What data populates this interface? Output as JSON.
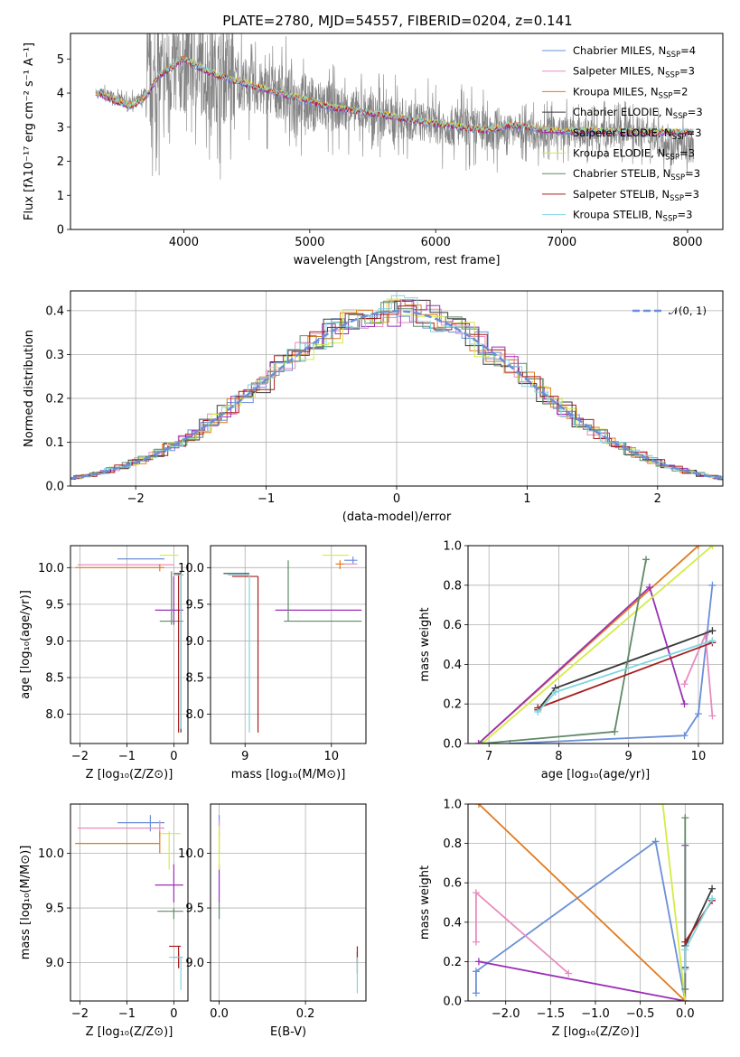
{
  "colors": {
    "miles_chabrier": "#6a8fd8",
    "miles_salpeter": "#e88cbf",
    "miles_kroupa": "#e07b1f",
    "elodie_chabrier": "#3a3a3a",
    "elodie_salpeter": "#9b30b5",
    "elodie_kroupa": "#d4ec45",
    "stelib_chabrier": "#5f8a66",
    "stelib_salpeter": "#a81e1e",
    "stelib_kroupa": "#7fd6e0",
    "data": "#808080",
    "normal": "#6a8fd8"
  },
  "legend": [
    {
      "id": "miles_chabrier",
      "label": "Chabrier MILES, N",
      "sub": "SSP",
      "tail": "=4"
    },
    {
      "id": "miles_salpeter",
      "label": "Salpeter MILES, N",
      "sub": "SSP",
      "tail": "=3"
    },
    {
      "id": "miles_kroupa",
      "label": "Kroupa MILES, N",
      "sub": "SSP",
      "tail": "=2"
    },
    {
      "id": "elodie_chabrier",
      "label": "Chabrier ELODIE, N",
      "sub": "SSP",
      "tail": "=3"
    },
    {
      "id": "elodie_salpeter",
      "label": "Salpeter ELODIE, N",
      "sub": "SSP",
      "tail": "=3"
    },
    {
      "id": "elodie_kroupa",
      "label": "Kroupa ELODIE, N",
      "sub": "SSP",
      "tail": "=3"
    },
    {
      "id": "stelib_chabrier",
      "label": "Chabrier STELIB, N",
      "sub": "SSP",
      "tail": "=3"
    },
    {
      "id": "stelib_salpeter",
      "label": "Salpeter STELIB, N",
      "sub": "SSP",
      "tail": "=3"
    },
    {
      "id": "stelib_kroupa",
      "label": "Kroupa STELIB, N",
      "sub": "SSP",
      "tail": "=3"
    }
  ],
  "chart_data": [
    {
      "id": "spectrum",
      "type": "line",
      "title": "PLATE=2780, MJD=54557, FIBERID=0204, z=0.141",
      "xlabel": "wavelength [Angstrom, rest frame]",
      "ylabel": "Flux [fλ10⁻¹⁷ erg cm⁻² s⁻¹ A⁻¹]",
      "xlim": [
        3100,
        8280
      ],
      "ylim": [
        0,
        5.75
      ],
      "xticks": [
        4000,
        5000,
        6000,
        7000,
        8000
      ],
      "yticks": [
        0,
        1,
        2,
        3,
        4,
        5
      ],
      "grid": false,
      "legend_position": "top-right",
      "data_series": {
        "name": "data",
        "x": [
          3350,
          3450,
          3550,
          3650,
          3750,
          3850,
          3950,
          4050,
          4200,
          4400,
          4600,
          4800,
          5000,
          5200,
          5400,
          5600,
          5800,
          6000,
          6200,
          6400,
          6600,
          6800,
          7000,
          7200,
          7400,
          7600,
          7800,
          8000
        ],
        "y": [
          4.0,
          3.9,
          3.75,
          3.8,
          4.3,
          4.6,
          4.7,
          4.9,
          4.6,
          4.4,
          4.1,
          4.0,
          3.7,
          3.55,
          3.45,
          3.3,
          3.2,
          3.1,
          3.0,
          2.9,
          2.95,
          2.8,
          2.9,
          2.8,
          2.85,
          2.9,
          2.6,
          2.4
        ]
      },
      "model_series": {
        "x": [
          3300,
          3400,
          3500,
          3600,
          3700,
          3800,
          3900,
          4000,
          4100,
          4200,
          4400,
          4600,
          4800,
          5000,
          5200,
          5400,
          5600,
          5800,
          6000,
          6200,
          6400,
          6600,
          6800,
          7000,
          7200,
          7400
        ],
        "y": [
          4.0,
          3.85,
          3.7,
          3.6,
          3.9,
          4.5,
          4.75,
          5.0,
          4.8,
          4.6,
          4.35,
          4.15,
          3.95,
          3.75,
          3.55,
          3.45,
          3.35,
          3.2,
          3.1,
          3.0,
          2.9,
          3.05,
          2.95,
          2.85,
          2.9,
          2.85
        ]
      }
    },
    {
      "id": "residuals",
      "type": "bar",
      "xlabel": "(data-model)/error",
      "ylabel": "Normed distribution",
      "xlim": [
        -2.5,
        2.5
      ],
      "ylim": [
        0,
        0.445
      ],
      "xticks": [
        -2,
        -1,
        0,
        1,
        2
      ],
      "yticks": [
        0.0,
        0.1,
        0.2,
        0.3,
        0.4
      ],
      "grid": true,
      "legend_position": "top-right",
      "normal_label": "𝒩(0, 1)",
      "normal_mu": 0,
      "normal_sigma": 1
    },
    {
      "id": "age_vs_Z",
      "type": "scatter",
      "xlabel": "Z [log₁₀(Z/Z⊙)]",
      "ylabel": "age  [log₁₀(age/yr)]",
      "xlim": [
        -2.2,
        0.3
      ],
      "ylim": [
        7.6,
        10.3
      ],
      "xticks": [
        -2,
        -1,
        0
      ],
      "yticks": [
        8.0,
        8.5,
        9.0,
        9.5,
        10.0
      ],
      "grid": true,
      "points": [
        {
          "series": "miles_chabrier",
          "x": -0.5,
          "y": 10.12,
          "x_lo": -1.2,
          "x_hi": -0.2,
          "y_lo": 10.12,
          "y_hi": 10.12
        },
        {
          "series": "miles_salpeter",
          "x": -0.3,
          "y": 10.04,
          "x_lo": -2.05,
          "x_hi": 0.0,
          "y_lo": 10.04,
          "y_hi": 10.04
        },
        {
          "series": "miles_kroupa",
          "x": -0.3,
          "y": 10.0,
          "x_lo": -2.1,
          "x_hi": -0.2,
          "y_lo": 9.95,
          "y_hi": 10.05
        },
        {
          "series": "elodie_chabrier",
          "x": 0.15,
          "y": 9.9,
          "x_lo": 0.0,
          "x_hi": 0.2,
          "y_lo": 7.75,
          "y_hi": 9.95
        },
        {
          "series": "elodie_salpeter",
          "x": 0.0,
          "y": 9.42,
          "x_lo": -0.4,
          "x_hi": 0.2,
          "y_lo": 9.22,
          "y_hi": 9.88
        },
        {
          "series": "elodie_kroupa",
          "x": -0.1,
          "y": 10.17,
          "x_lo": -0.3,
          "x_hi": 0.1,
          "y_lo": 10.17,
          "y_hi": 10.17
        },
        {
          "series": "stelib_chabrier",
          "x": -0.05,
          "y": 9.27,
          "x_lo": -0.3,
          "x_hi": 0.2,
          "y_lo": 9.22,
          "y_hi": 9.95
        },
        {
          "series": "stelib_salpeter",
          "x": 0.1,
          "y": 9.92,
          "x_lo": 0.0,
          "x_hi": 0.15,
          "y_lo": 7.75,
          "y_hi": 9.92
        },
        {
          "series": "stelib_kroupa",
          "x": 0.15,
          "y": 9.9,
          "x_lo": 0.0,
          "x_hi": 0.2,
          "y_lo": 7.8,
          "y_hi": 9.92
        }
      ]
    },
    {
      "id": "age_vs_mass",
      "type": "scatter",
      "xlabel": "mass [log₁₀(M/M⊙)]",
      "ylabel": "",
      "xlim": [
        8.6,
        10.4
      ],
      "ylim": [
        7.6,
        10.3
      ],
      "xticks": [
        9,
        10
      ],
      "yticks": [
        8.0,
        8.5,
        9.0,
        9.5,
        10.0
      ],
      "grid": true,
      "points": [
        {
          "series": "miles_chabrier",
          "x": 10.25,
          "y": 10.1,
          "x_lo": 10.15,
          "x_hi": 10.3,
          "y_lo": 10.05,
          "y_hi": 10.15
        },
        {
          "series": "miles_salpeter",
          "x": 10.2,
          "y": 10.05,
          "x_lo": 10.15,
          "x_hi": 10.3,
          "y_lo": 10.05,
          "y_hi": 10.05
        },
        {
          "series": "miles_kroupa",
          "x": 10.1,
          "y": 10.05,
          "x_lo": 10.05,
          "x_hi": 10.15,
          "y_lo": 9.98,
          "y_hi": 10.1
        },
        {
          "series": "elodie_chabrier",
          "x": 9.0,
          "y": 9.92,
          "x_lo": 8.75,
          "x_hi": 9.05,
          "y_lo": 9.92,
          "y_hi": 9.92
        },
        {
          "series": "elodie_salpeter",
          "x": 9.7,
          "y": 9.42,
          "x_lo": 9.35,
          "x_hi": 10.35,
          "y_lo": 9.42,
          "y_hi": 9.42
        },
        {
          "series": "elodie_kroupa",
          "x": 10.0,
          "y": 10.17,
          "x_lo": 9.9,
          "x_hi": 10.2,
          "y_lo": 10.17,
          "y_hi": 10.17
        },
        {
          "series": "stelib_chabrier",
          "x": 9.5,
          "y": 9.27,
          "x_lo": 9.45,
          "x_hi": 10.35,
          "y_lo": 9.27,
          "y_hi": 10.1
        },
        {
          "series": "stelib_salpeter",
          "x": 9.15,
          "y": 9.88,
          "x_lo": 8.85,
          "x_hi": 9.15,
          "y_lo": 7.75,
          "y_hi": 9.88
        },
        {
          "series": "stelib_kroupa",
          "x": 9.05,
          "y": 9.9,
          "x_lo": 8.8,
          "x_hi": 9.05,
          "y_lo": 7.75,
          "y_hi": 9.9
        }
      ]
    },
    {
      "id": "weight_vs_age",
      "type": "line",
      "xlabel": "age  [log₁₀(age/yr)]",
      "ylabel": "mass weight",
      "xlim": [
        6.7,
        10.35
      ],
      "ylim": [
        0,
        1
      ],
      "xticks": [
        7,
        8,
        9,
        10
      ],
      "yticks": [
        0.0,
        0.2,
        0.4,
        0.6,
        0.8,
        1.0
      ],
      "grid": true,
      "series": [
        {
          "id": "miles_chabrier",
          "x": [
            7.3,
            9.8,
            10.0,
            10.2
          ],
          "y": [
            0.0,
            0.04,
            0.15,
            0.8
          ]
        },
        {
          "id": "miles_salpeter",
          "x": [
            9.8,
            10.1,
            10.2
          ],
          "y": [
            0.3,
            0.55,
            0.14
          ]
        },
        {
          "id": "miles_kroupa",
          "x": [
            6.85,
            10.0
          ],
          "y": [
            0.0,
            1.0
          ]
        },
        {
          "id": "elodie_chabrier",
          "x": [
            7.7,
            7.95,
            10.2
          ],
          "y": [
            0.17,
            0.28,
            0.57
          ]
        },
        {
          "id": "elodie_salpeter",
          "x": [
            6.85,
            9.3,
            9.8
          ],
          "y": [
            0.0,
            0.79,
            0.2
          ]
        },
        {
          "id": "elodie_kroupa",
          "x": [
            6.9,
            10.2
          ],
          "y": [
            0.0,
            1.0
          ]
        },
        {
          "id": "stelib_chabrier",
          "x": [
            6.9,
            8.8,
            9.25
          ],
          "y": [
            0.0,
            0.06,
            0.93
          ]
        },
        {
          "id": "stelib_salpeter",
          "x": [
            7.7,
            10.2
          ],
          "y": [
            0.18,
            0.51
          ]
        },
        {
          "id": "stelib_kroupa",
          "x": [
            7.7,
            7.95,
            10.2
          ],
          "y": [
            0.16,
            0.26,
            0.52
          ]
        }
      ]
    },
    {
      "id": "mass_vs_Z",
      "type": "scatter",
      "xlabel": "Z [log₁₀(Z/Z⊙)]",
      "ylabel": "mass [log₁₀(M/M⊙)]",
      "xlim": [
        -2.2,
        0.3
      ],
      "ylim": [
        8.65,
        10.45
      ],
      "xticks": [
        -2,
        -1,
        0
      ],
      "yticks": [
        9.0,
        9.5,
        10.0
      ],
      "grid": true,
      "points": [
        {
          "series": "miles_chabrier",
          "x": -0.5,
          "y": 10.28,
          "x_lo": -1.2,
          "x_hi": -0.2,
          "y_lo": 10.2,
          "y_hi": 10.35
        },
        {
          "series": "miles_salpeter",
          "x": -0.3,
          "y": 10.23,
          "x_lo": -2.05,
          "x_hi": -0.2,
          "y_lo": 10.15,
          "y_hi": 10.3
        },
        {
          "series": "miles_kroupa",
          "x": -0.3,
          "y": 10.09,
          "x_lo": -2.1,
          "x_hi": -0.3,
          "y_lo": 10.0,
          "y_hi": 10.2
        },
        {
          "series": "elodie_chabrier",
          "x": 0.1,
          "y": 9.05,
          "x_lo": 0.0,
          "x_hi": 0.15,
          "y_lo": 8.95,
          "y_hi": 9.1
        },
        {
          "series": "elodie_salpeter",
          "x": 0.0,
          "y": 9.71,
          "x_lo": -0.4,
          "x_hi": 0.2,
          "y_lo": 9.55,
          "y_hi": 9.9
        },
        {
          "series": "elodie_kroupa",
          "x": -0.1,
          "y": 10.18,
          "x_lo": -0.3,
          "x_hi": 0.15,
          "y_lo": 9.85,
          "y_hi": 10.2
        },
        {
          "series": "stelib_chabrier",
          "x": 0.0,
          "y": 9.47,
          "x_lo": -0.35,
          "x_hi": 0.2,
          "y_lo": 9.4,
          "y_hi": 9.5
        },
        {
          "series": "stelib_salpeter",
          "x": 0.1,
          "y": 9.15,
          "x_lo": -0.1,
          "x_hi": 0.15,
          "y_lo": 8.95,
          "y_hi": 9.15
        },
        {
          "series": "stelib_kroupa",
          "x": 0.15,
          "y": 9.05,
          "x_lo": -0.1,
          "x_hi": 0.2,
          "y_lo": 8.75,
          "y_hi": 9.05
        }
      ]
    },
    {
      "id": "mass_vs_ebv",
      "type": "scatter",
      "xlabel": "E(B-V)",
      "ylabel": "",
      "xlim": [
        -0.02,
        0.34
      ],
      "ylim": [
        8.65,
        10.45
      ],
      "xticks": [
        0.0,
        0.2
      ],
      "yticks": [
        9.0,
        9.5,
        10.0
      ],
      "grid": true,
      "points": [
        {
          "series": "miles_chabrier",
          "x": 0.0,
          "y": 10.3,
          "x_lo": 0.0,
          "x_hi": 0.0,
          "y_lo": 10.2,
          "y_hi": 10.35
        },
        {
          "series": "miles_salpeter",
          "x": 0.0,
          "y": 10.23,
          "x_lo": 0.0,
          "x_hi": 0.0,
          "y_lo": 10.15,
          "y_hi": 10.3
        },
        {
          "series": "miles_kroupa",
          "x": 0.0,
          "y": 10.09,
          "x_lo": 0.0,
          "x_hi": 0.0,
          "y_lo": 10.0,
          "y_hi": 10.2
        },
        {
          "series": "elodie_chabrier",
          "x": 0.32,
          "y": 9.0,
          "x_lo": 0.32,
          "x_hi": 0.32,
          "y_lo": 8.9,
          "y_hi": 9.1
        },
        {
          "series": "elodie_salpeter",
          "x": 0.0,
          "y": 9.71,
          "x_lo": 0.0,
          "x_hi": 0.0,
          "y_lo": 9.55,
          "y_hi": 9.9
        },
        {
          "series": "elodie_kroupa",
          "x": 0.0,
          "y": 10.18,
          "x_lo": 0.0,
          "x_hi": 0.0,
          "y_lo": 9.85,
          "y_hi": 10.25
        },
        {
          "series": "stelib_chabrier",
          "x": 0.0,
          "y": 9.47,
          "x_lo": 0.0,
          "x_hi": 0.0,
          "y_lo": 9.4,
          "y_hi": 9.55
        },
        {
          "series": "stelib_salpeter",
          "x": 0.32,
          "y": 9.1,
          "x_lo": 0.32,
          "x_hi": 0.32,
          "y_lo": 9.0,
          "y_hi": 9.15
        },
        {
          "series": "stelib_kroupa",
          "x": 0.32,
          "y": 8.95,
          "x_lo": 0.32,
          "x_hi": 0.32,
          "y_lo": 8.72,
          "y_hi": 9.05
        }
      ]
    },
    {
      "id": "weight_vs_Z",
      "type": "line",
      "xlabel": "Z [log₁₀(Z/Z⊙)]",
      "ylabel": "mass weight",
      "xlim": [
        -2.42,
        0.42
      ],
      "ylim": [
        0,
        1
      ],
      "xticks": [
        -2.0,
        -1.5,
        -1.0,
        -0.5,
        0.0
      ],
      "yticks": [
        0.0,
        0.2,
        0.4,
        0.6,
        0.8,
        1.0
      ],
      "grid": true,
      "series": [
        {
          "id": "miles_chabrier",
          "x": [
            -2.33,
            -2.33,
            -0.33,
            0.0
          ],
          "y": [
            0.04,
            0.15,
            0.81,
            0.0
          ]
        },
        {
          "id": "miles_salpeter",
          "x": [
            -2.33,
            -2.33,
            -1.3
          ],
          "y": [
            0.3,
            0.55,
            0.14
          ]
        },
        {
          "id": "miles_kroupa",
          "x": [
            -2.3,
            0.0
          ],
          "y": [
            1.0,
            0.0
          ]
        },
        {
          "id": "elodie_chabrier",
          "x": [
            0.0,
            0.0,
            0.3
          ],
          "y": [
            0.17,
            0.28,
            0.57
          ]
        },
        {
          "id": "elodie_salpeter",
          "x": [
            -2.3,
            0.0,
            0.0
          ],
          "y": [
            0.2,
            0.0,
            0.79
          ]
        },
        {
          "id": "elodie_kroupa",
          "x": [
            -0.25,
            0.0
          ],
          "y": [
            1.0,
            0.0
          ]
        },
        {
          "id": "stelib_chabrier",
          "x": [
            0.0,
            0.0
          ],
          "y": [
            0.06,
            0.93
          ]
        },
        {
          "id": "stelib_salpeter",
          "x": [
            0.0,
            0.3
          ],
          "y": [
            0.3,
            0.51
          ]
        },
        {
          "id": "stelib_kroupa",
          "x": [
            0.0,
            0.0,
            0.3
          ],
          "y": [
            0.16,
            0.26,
            0.52
          ]
        }
      ]
    }
  ]
}
